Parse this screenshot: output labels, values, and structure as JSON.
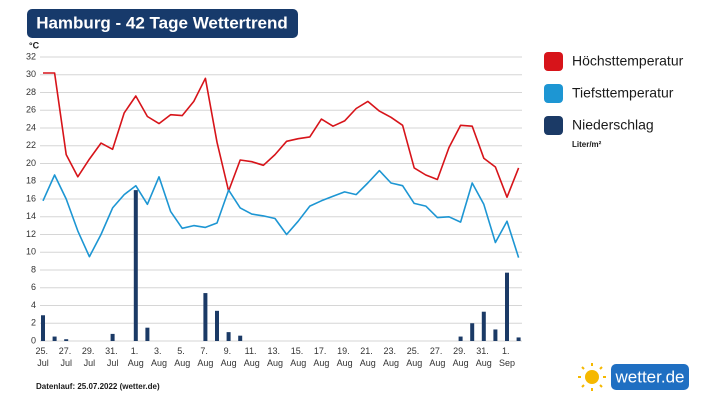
{
  "chart_data": {
    "type": "line",
    "title": "Hamburg - 42 Tage Wettertrend",
    "y_label": "°C",
    "unit_note": "Liter/m²",
    "footer": "Datenlauf: 25.07.2022 (wetter.de)",
    "logo": "wetter.de",
    "categories": [
      "25. Jul",
      null,
      "27. Jul",
      null,
      "29. Jul",
      null,
      "31. Jul",
      null,
      "1. Aug",
      null,
      "3. Aug",
      null,
      "5. Aug",
      null,
      "7. Aug",
      null,
      "9. Aug",
      null,
      "11. Aug",
      null,
      "13. Aug",
      null,
      "15. Aug",
      null,
      "17. Aug",
      null,
      "19. Aug",
      null,
      "21. Aug",
      null,
      "23. Aug",
      null,
      "25. Aug",
      null,
      "27. Aug",
      null,
      "29. Aug",
      null,
      "31. Aug",
      null,
      "1. Sep",
      null
    ],
    "ylim": [
      0,
      32
    ],
    "yticks": [
      0,
      2,
      4,
      6,
      8,
      10,
      12,
      14,
      16,
      18,
      20,
      22,
      24,
      26,
      28,
      30,
      32
    ],
    "grid": true,
    "series": [
      {
        "name": "Höchsttemperatur",
        "type": "line",
        "color": "#d7141a",
        "values": [
          30.2,
          30.2,
          21.0,
          18.5,
          20.5,
          22.3,
          21.6,
          25.7,
          27.6,
          25.3,
          24.5,
          25.5,
          25.4,
          27.0,
          29.6,
          22.4,
          16.9,
          20.4,
          20.2,
          19.8,
          21.0,
          22.5,
          22.8,
          23.0,
          25.0,
          24.2,
          24.8,
          26.2,
          27.0,
          25.9,
          25.2,
          24.3,
          19.5,
          18.7,
          18.2,
          21.8,
          24.3,
          24.2,
          20.6,
          19.6,
          16.2,
          19.5
        ]
      },
      {
        "name": "Tiefsttemperatur",
        "type": "line",
        "color": "#1d96d3",
        "values": [
          15.8,
          18.7,
          16.0,
          12.4,
          9.5,
          12.0,
          15.0,
          16.5,
          17.5,
          15.4,
          18.5,
          14.6,
          12.7,
          13.0,
          12.8,
          13.3,
          17.0,
          15.0,
          14.3,
          14.1,
          13.8,
          12.0,
          13.5,
          15.2,
          15.8,
          16.3,
          16.8,
          16.5,
          17.8,
          19.2,
          17.8,
          17.5,
          15.5,
          15.2,
          13.9,
          14.0,
          13.4,
          17.8,
          15.4,
          11.1,
          13.5,
          9.4
        ]
      },
      {
        "name": "Niederschlag",
        "type": "bar",
        "color": "#1b3a66",
        "values": [
          2.9,
          0.5,
          0.2,
          0,
          0,
          0,
          0.8,
          0,
          17,
          1.5,
          0,
          0,
          0,
          0,
          5.4,
          3.4,
          1.0,
          0.6,
          0,
          0,
          0,
          0,
          0,
          0,
          0,
          0,
          0,
          0,
          0,
          0,
          0,
          0,
          0,
          0,
          0,
          0,
          0.5,
          2.0,
          3.3,
          1.3,
          7.7,
          0.4
        ]
      }
    ]
  }
}
